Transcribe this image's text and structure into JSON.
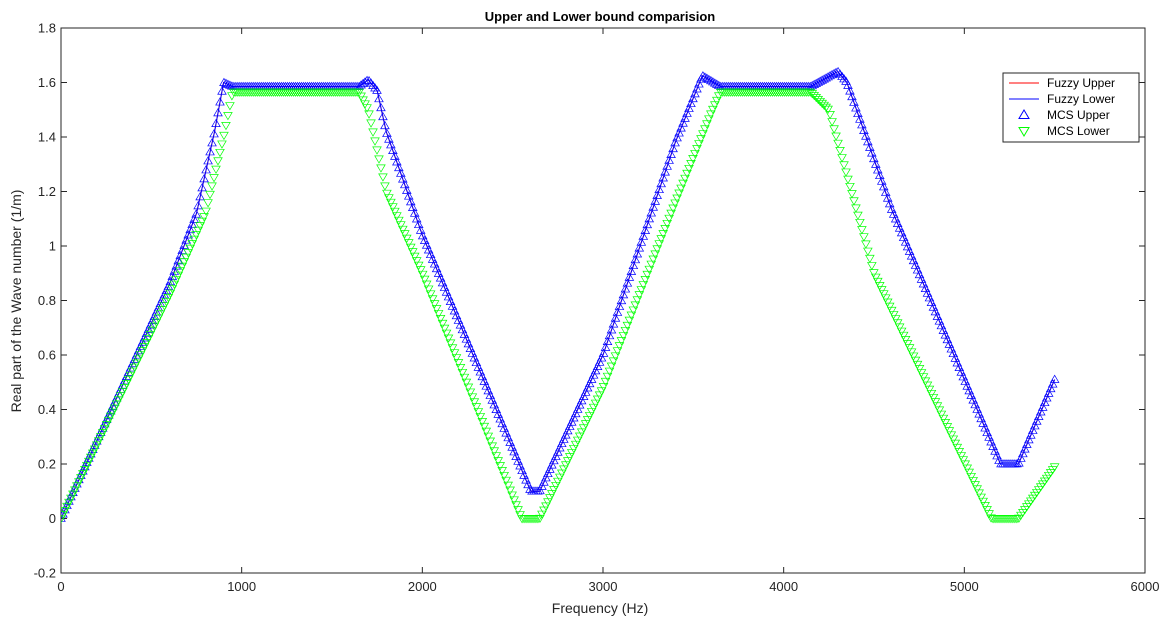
{
  "chart_data": {
    "type": "line",
    "title": "Upper and Lower bound comparision",
    "xlabel": "Frequency (Hz)",
    "ylabel": "Real part of the Wave number (1/m)",
    "xlim": [
      0,
      6000
    ],
    "ylim": [
      -0.2,
      1.8
    ],
    "xticks": [
      0,
      1000,
      2000,
      3000,
      4000,
      5000,
      6000
    ],
    "yticks": [
      -0.2,
      0,
      0.2,
      0.4,
      0.6,
      0.8,
      1,
      1.2,
      1.4,
      1.6,
      1.8
    ],
    "xtick_labels": [
      "0",
      "1000",
      "2000",
      "3000",
      "4000",
      "5000",
      "6000"
    ],
    "ytick_labels": [
      "-0.2",
      "0",
      "0.2",
      "0.4",
      "0.6",
      "0.8",
      "1",
      "1.2",
      "1.4",
      "1.6",
      "1.8"
    ],
    "grid": false,
    "legend_position": "top-right",
    "series": [
      {
        "name": "Fuzzy Upper",
        "color": "#ff0000",
        "style": "line",
        "x": [
          0,
          300,
          600,
          750,
          850,
          900,
          950,
          1000,
          1650,
          1700,
          1750,
          1800,
          2000,
          2600,
          2650,
          3000,
          3400,
          3550,
          3650,
          4150,
          4300,
          4350,
          4600,
          5200,
          5300,
          5500
        ],
        "y": [
          0,
          0.43,
          0.86,
          1.12,
          1.42,
          1.6,
          1.585,
          1.585,
          1.585,
          1.61,
          1.57,
          1.42,
          1.04,
          0.1,
          0.1,
          0.6,
          1.38,
          1.625,
          1.585,
          1.585,
          1.64,
          1.6,
          1.13,
          0.2,
          0.2,
          0.51
        ]
      },
      {
        "name": "Fuzzy Lower",
        "color": "#0000ff",
        "style": "line",
        "x": [
          0,
          300,
          600,
          750,
          850,
          900,
          950,
          1000,
          1650,
          1700,
          1750,
          1800,
          2000,
          2600,
          2650,
          3000,
          3400,
          3550,
          3650,
          4150,
          4300,
          4350,
          4600,
          5200,
          5300,
          5500
        ],
        "y": [
          0,
          0.43,
          0.86,
          1.12,
          1.42,
          1.6,
          1.585,
          1.585,
          1.585,
          1.61,
          1.57,
          1.42,
          1.04,
          0.1,
          0.1,
          0.6,
          1.38,
          1.625,
          1.585,
          1.585,
          1.64,
          1.6,
          1.13,
          0.2,
          0.2,
          0.51
        ]
      },
      {
        "name": "MCS Upper",
        "color": "#0000ff",
        "style": "marker-triangle-up",
        "x": [
          0,
          300,
          600,
          750,
          850,
          900,
          950,
          1000,
          1650,
          1700,
          1750,
          1800,
          2000,
          2600,
          2650,
          3000,
          3400,
          3550,
          3650,
          4150,
          4300,
          4350,
          4600,
          5200,
          5300,
          5500
        ],
        "y": [
          0,
          0.43,
          0.86,
          1.12,
          1.42,
          1.6,
          1.585,
          1.585,
          1.585,
          1.61,
          1.57,
          1.42,
          1.04,
          0.1,
          0.1,
          0.6,
          1.38,
          1.625,
          1.585,
          1.585,
          1.64,
          1.6,
          1.13,
          0.2,
          0.2,
          0.51
        ]
      },
      {
        "name": "MCS Lower",
        "color": "#00ff00",
        "style": "marker-triangle-down",
        "x": [
          0,
          300,
          600,
          800,
          900,
          950,
          1650,
          1700,
          1800,
          2000,
          2550,
          2650,
          3000,
          3400,
          3600,
          3650,
          4150,
          4250,
          4500,
          5150,
          5300,
          5500
        ],
        "y": [
          0,
          0.41,
          0.82,
          1.12,
          1.4,
          1.565,
          1.565,
          1.5,
          1.2,
          0.9,
          0.0,
          0.0,
          0.48,
          1.16,
          1.49,
          1.565,
          1.565,
          1.5,
          0.9,
          0.0,
          0.0,
          0.19
        ]
      }
    ]
  }
}
